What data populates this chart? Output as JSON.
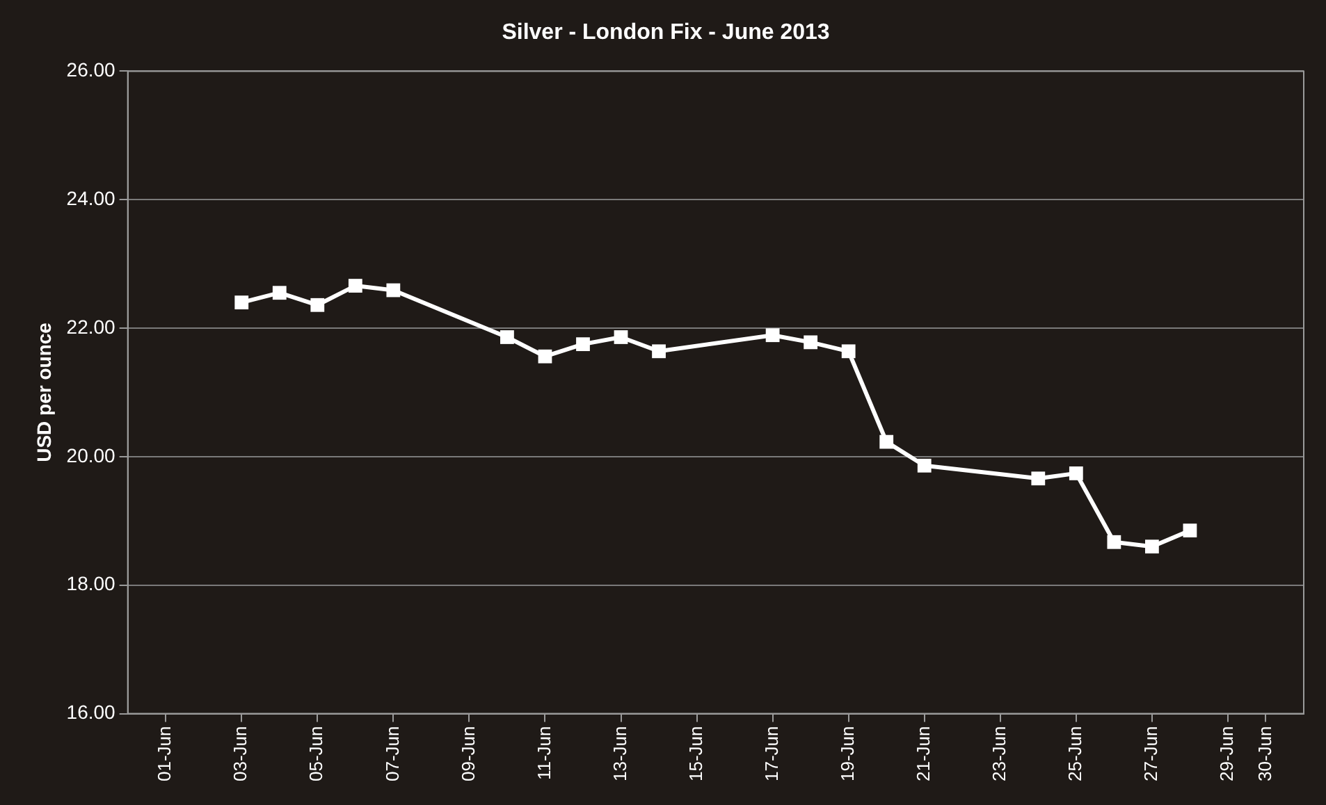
{
  "chart_data": {
    "type": "line",
    "title": "Silver - London Fix - June 2013",
    "ylabel": "USD per ounce",
    "x": [
      "2013-06-03",
      "2013-06-04",
      "2013-06-05",
      "2013-06-06",
      "2013-06-07",
      "2013-06-10",
      "2013-06-11",
      "2013-06-12",
      "2013-06-13",
      "2013-06-14",
      "2013-06-17",
      "2013-06-18",
      "2013-06-19",
      "2013-06-20",
      "2013-06-21",
      "2013-06-24",
      "2013-06-25",
      "2013-06-26",
      "2013-06-27",
      "2013-06-28"
    ],
    "series": [
      {
        "color": "#ffffff",
        "values": [
          22.4,
          22.55,
          22.36,
          22.66,
          22.59,
          21.86,
          21.56,
          21.75,
          21.86,
          21.64,
          21.89,
          21.78,
          21.64,
          20.23,
          19.86,
          19.66,
          19.74,
          18.67,
          18.6,
          18.85
        ]
      }
    ],
    "xlim": [
      "2013-05-31",
      "2013-07-01"
    ],
    "xticks": [
      {
        "value": "2013-06-01",
        "label": "01-Jun"
      },
      {
        "value": "2013-06-03",
        "label": "03-Jun"
      },
      {
        "value": "2013-06-05",
        "label": "05-Jun"
      },
      {
        "value": "2013-06-07",
        "label": "07-Jun"
      },
      {
        "value": "2013-06-09",
        "label": "09-Jun"
      },
      {
        "value": "2013-06-11",
        "label": "11-Jun"
      },
      {
        "value": "2013-06-13",
        "label": "13-Jun"
      },
      {
        "value": "2013-06-15",
        "label": "15-Jun"
      },
      {
        "value": "2013-06-17",
        "label": "17-Jun"
      },
      {
        "value": "2013-06-19",
        "label": "19-Jun"
      },
      {
        "value": "2013-06-21",
        "label": "21-Jun"
      },
      {
        "value": "2013-06-23",
        "label": "23-Jun"
      },
      {
        "value": "2013-06-25",
        "label": "25-Jun"
      },
      {
        "value": "2013-06-27",
        "label": "27-Jun"
      },
      {
        "value": "2013-06-29",
        "label": "29-Jun"
      },
      {
        "value": "2013-06-30",
        "label": "30-Jun"
      }
    ],
    "ylim": [
      16,
      26
    ],
    "yticks": [
      {
        "value": 16,
        "label": "16.00"
      },
      {
        "value": 18,
        "label": "18.00"
      },
      {
        "value": 20,
        "label": "20.00"
      },
      {
        "value": 22,
        "label": "22.00"
      },
      {
        "value": 24,
        "label": "24.00"
      },
      {
        "value": 26,
        "label": "26.00"
      }
    ],
    "grid": "y",
    "legend": false,
    "marker": "square",
    "line_style": "solid"
  }
}
